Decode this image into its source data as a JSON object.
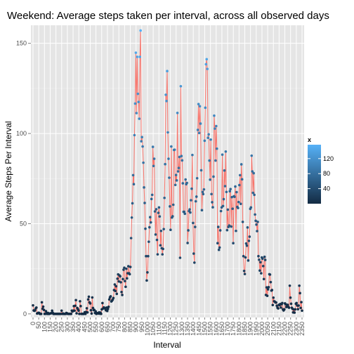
{
  "chart_data": {
    "type": "line",
    "title": "Weekend: Average steps taken per interval, across all observed days",
    "xlabel": "Interval",
    "ylabel": "Average Steps Per Interval",
    "ylim": [
      -2,
      160
    ],
    "yticks": [
      0,
      50,
      100,
      150
    ],
    "legend": {
      "title": "x",
      "placement": "right",
      "ticks": [
        40,
        80,
        120
      ],
      "min": 0,
      "max": 157,
      "low_color": "#132B43",
      "high_color": "#56B1F7"
    },
    "line_color": "#F8766D",
    "grid": true,
    "background": "#E5E5E5",
    "x_tick_labels": [
      "0",
      "50",
      "100",
      "150",
      "200",
      "250",
      "300",
      "350",
      "400",
      "450",
      "500",
      "550",
      "600",
      "650",
      "700",
      "750",
      "800",
      "850",
      "900",
      "950",
      "1000",
      "1050",
      "1100",
      "1150",
      "1200",
      "1250",
      "1300",
      "1350",
      "1400",
      "1450",
      "1500",
      "1550",
      "1600",
      "1650",
      "1700",
      "1750",
      "1800",
      "1850",
      "1900",
      "1950",
      "2000",
      "2050",
      "2100",
      "2150",
      "2200",
      "2250",
      "2300",
      "2350"
    ],
    "values": [
      4.7,
      1.9,
      1.7,
      1.9,
      3.0,
      3.5,
      0.2,
      0.4,
      0.6,
      0.5,
      0.0,
      0.0,
      0.0,
      6.4,
      2.8,
      4.0,
      2.2,
      0.0,
      0.0,
      1.5,
      0.5,
      0.0,
      0.5,
      0.0,
      0.0,
      0.2,
      0.3,
      0.4,
      1.8,
      0.6,
      0.0,
      0.0,
      0.0,
      0.0,
      0.0,
      0.0,
      0.0,
      0.0,
      0.0,
      0.0,
      0.0,
      0.0,
      1.8,
      0.0,
      0.2,
      0.0,
      0.0,
      0.0,
      0.0,
      0.5,
      0.3,
      0.0,
      0.0,
      0.0,
      0.0,
      0.0,
      0.0,
      1.8,
      1.3,
      1.8,
      4.3,
      1.8,
      4.5,
      7.6,
      0.3,
      3.3,
      2.6,
      1.8,
      0.0,
      7.0,
      4.3,
      0.0,
      0.0,
      0.0,
      0.0,
      0.0,
      0.9,
      0.0,
      1.1,
      3.1,
      0.8,
      8.0,
      9.5,
      6.4,
      5.8,
      2.0,
      0.2,
      9.1,
      3.3,
      2.1,
      2.2,
      0.5,
      1.4,
      0.0,
      0.4,
      0.4,
      0.2,
      0.8,
      0.1,
      0.7,
      0.0,
      2.5,
      6.0,
      3.0,
      3.6,
      3.1,
      3.0,
      2.0,
      3.5,
      1.6,
      2.7,
      3.9,
      8.0,
      9.2,
      9.7,
      6.9,
      7.3,
      7.9,
      8.8,
      13.2,
      16.3,
      12.7,
      15.3,
      11.1,
      19.5,
      21.9,
      18.0,
      21.3,
      20.8,
      17.5,
      12.1,
      10.5,
      19.3,
      24.5,
      25.6,
      18.2,
      15.0,
      25.0,
      19.7,
      22.5,
      26.4,
      22.5,
      22.0,
      26.0,
      42.0,
      53.4,
      61.3,
      76.9,
      71.9,
      99.1,
      116.6,
      144.8,
      111.3,
      142.5,
      122.0,
      117.5,
      108.2,
      142.5,
      157.1,
      95.7,
      98.0,
      92.8,
      83.8,
      70.1,
      61.5,
      47.2,
      32.0,
      18.5,
      23.0,
      32.0,
      40.0,
      48.0,
      53.6,
      50.7,
      63.7,
      66.0,
      92.6,
      82.0,
      86.0,
      56.8,
      44.0,
      58.0,
      41.0,
      33.0,
      56.0,
      59.0,
      54.0,
      38.0,
      46.0,
      36.4,
      33.0,
      36.0,
      47.0,
      64.3,
      83.0,
      121.5,
      118.0,
      134.6,
      100.6,
      86.0,
      75.5,
      59.6,
      46.6,
      92.8,
      53.4,
      54.1,
      60.5,
      90.9,
      91.0,
      71.5,
      77.0,
      74.0,
      111.4,
      79.0,
      80.9,
      87.0,
      31.1,
      126.2,
      87.5,
      85.1,
      72.4,
      56.6,
      56.6,
      55.5,
      74.5,
      71.9,
      72.6,
      39.3,
      46.3,
      57.0,
      57.9,
      56.2,
      63.0,
      69.4,
      88.1,
      50.4,
      33.4,
      28.4,
      48.2,
      62.4,
      65.0,
      75.2,
      102.0,
      116.3,
      100.3,
      115.1,
      105.5,
      79.6,
      57.5,
      67.6,
      66.4,
      69.0,
      96.0,
      114.3,
      138.4,
      141.2,
      135.8,
      97.6,
      99.5,
      85.0,
      74.4,
      96.6,
      66.4,
      61.9,
      59.1,
      76.1,
      109.9,
      102.7,
      85.0,
      104.1,
      91.6,
      39.2,
      48.2,
      35.5,
      36.8,
      46.3,
      57.0,
      59.0,
      88.3,
      59.8,
      63.6,
      79.5,
      70.8,
      90.0,
      67.6,
      46.4,
      57.8,
      48.2,
      49.0,
      68.0,
      69.2,
      48.4,
      64.7,
      58.3,
      39.2,
      65.2,
      64.9,
      70.6,
      46.0,
      67.5,
      59.3,
      58.7,
      62.0,
      71.4,
      76.9,
      61.0,
      82.9,
      74.6,
      51.0,
      32.0,
      23.8,
      22.1,
      31.3,
      39.0,
      37.8,
      47.9,
      29.6,
      40.5,
      42.8,
      58.2,
      59.0,
      87.7,
      79.0,
      67.1,
      78.0,
      66.0,
      55.1,
      51.6,
      49.5,
      45.9,
      51.0,
      32.0,
      30.0,
      24.0,
      28.6,
      22.5,
      31.3,
      30.6,
      26.5,
      19.3,
      31.6,
      29.9,
      10.5,
      14.7,
      10.0,
      13.6,
      14.8,
      22.0,
      21.8,
      17.6,
      12.9,
      13.2,
      4.9,
      9.0,
      7.0,
      6.8,
      6.3,
      6.3,
      4.5,
      3.4,
      3.0,
      5.0,
      4.8,
      5.5,
      3.5,
      5.3,
      6.0,
      2.5,
      1.9,
      2.5,
      5.8,
      5.3,
      3.8,
      5.0,
      5.0,
      3.8,
      3.4,
      15.6,
      9.0,
      5.6,
      3.4,
      2.8,
      0.8,
      2.4,
      0.7,
      2.5,
      5.6,
      6.0,
      4.6,
      2.6,
      4.6,
      15.6,
      11.5,
      3.3,
      6.5,
      1.8
    ]
  }
}
